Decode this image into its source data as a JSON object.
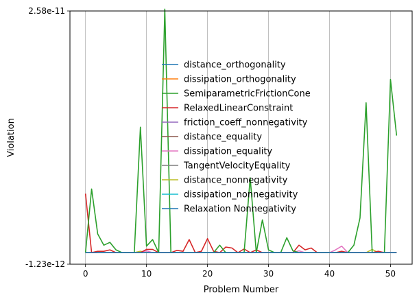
{
  "chart_data": {
    "type": "line",
    "title": "",
    "xlabel": "Problem Number",
    "ylabel": "Violation",
    "xlim": [
      -2.55,
      53.55
    ],
    "ylim": [
      -1.23e-12,
      2.58e-11
    ],
    "x_ticks": [
      0,
      10,
      20,
      30,
      40,
      50
    ],
    "x_tick_labels": [
      "0",
      "10",
      "20",
      "30",
      "40",
      "50"
    ],
    "y_ticks": [
      -1.23e-12,
      2.58e-11
    ],
    "y_tick_labels": [
      "-1.23e-12",
      "2.58e-11"
    ],
    "grid": "vertical",
    "legend_placement": "upper-center",
    "x": [
      0,
      1,
      2,
      3,
      4,
      5,
      6,
      7,
      8,
      9,
      10,
      11,
      12,
      13,
      14,
      15,
      16,
      17,
      18,
      19,
      20,
      21,
      22,
      23,
      24,
      25,
      26,
      27,
      28,
      29,
      30,
      31,
      32,
      33,
      34,
      35,
      36,
      37,
      38,
      39,
      40,
      41,
      42,
      43,
      44,
      45,
      46,
      47,
      48,
      49,
      50,
      51
    ],
    "series": [
      {
        "name": "distance_orthogonality",
        "color": "#1f77b4",
        "values": [
          0,
          0,
          0,
          0,
          0,
          0,
          0,
          0,
          0,
          0,
          0,
          0,
          0,
          0,
          0,
          0,
          0,
          0,
          0,
          0,
          0,
          0,
          0,
          0,
          0,
          0,
          0,
          0,
          0,
          0,
          0,
          0,
          0,
          0,
          0,
          0,
          0,
          0,
          0,
          0,
          0,
          0,
          0,
          0,
          0,
          0,
          0,
          0,
          0,
          0,
          0,
          0
        ]
      },
      {
        "name": "dissipation_orthogonality",
        "color": "#ff7f0e",
        "values": [
          0,
          0,
          0,
          0,
          0,
          0,
          0,
          0,
          0,
          0,
          0,
          0,
          0,
          0,
          0,
          0,
          0,
          0,
          0,
          0,
          0,
          0,
          0,
          0,
          0,
          0,
          0,
          0,
          0,
          0,
          0,
          0,
          0,
          0,
          0,
          0,
          0,
          0,
          0,
          0,
          0,
          0,
          0,
          0,
          0,
          0,
          0,
          0,
          0,
          0,
          0,
          0
        ]
      },
      {
        "name": "SemiparametricFrictionCone",
        "color": "#2ca02c",
        "values": [
          0,
          6.8e-12,
          2e-12,
          8e-13,
          1.1e-12,
          3e-13,
          0,
          0,
          0,
          1.34e-11,
          7e-13,
          1.4e-12,
          0,
          2.6e-11,
          0,
          0,
          0,
          0,
          0,
          0,
          0,
          0,
          8e-13,
          0,
          0,
          0,
          0,
          8e-12,
          0,
          3.5e-12,
          3e-13,
          0,
          0,
          1.6e-12,
          2e-13,
          0,
          0,
          0,
          0,
          0,
          0,
          0,
          0,
          0,
          8e-13,
          3.7e-12,
          1.6e-11,
          0,
          0,
          0,
          1.85e-11,
          1.25e-11
        ]
      },
      {
        "name": "RelaxedLinearConstraint",
        "color": "#d62728",
        "values": [
          6.3e-12,
          0,
          1.5e-13,
          1.5e-13,
          3e-13,
          0,
          0,
          0,
          0,
          0,
          3.5e-13,
          3.5e-13,
          0,
          0,
          0,
          2.5e-13,
          1.5e-13,
          1.4e-12,
          0,
          1.5e-13,
          1.5e-12,
          1.5e-13,
          0,
          6e-13,
          5e-13,
          0,
          4e-13,
          0,
          3e-13,
          0,
          0,
          0,
          0,
          0,
          0,
          8e-13,
          3e-13,
          5e-13,
          0,
          0,
          0,
          0,
          1.5e-13,
          0,
          0,
          0,
          0,
          0,
          1.5e-13,
          0,
          0,
          0
        ]
      },
      {
        "name": "friction_coeff_nonnegativity",
        "color": "#9467bd",
        "values": [
          0,
          0,
          0,
          0,
          0,
          0,
          0,
          0,
          0,
          0,
          0,
          0,
          0,
          0,
          0,
          0,
          0,
          0,
          0,
          0,
          0,
          0,
          0,
          0,
          0,
          0,
          0,
          0,
          0,
          0,
          0,
          0,
          0,
          0,
          0,
          0,
          0,
          0,
          0,
          0,
          0,
          0,
          0,
          0,
          0,
          0,
          0,
          0,
          0,
          0,
          0,
          0
        ]
      },
      {
        "name": "distance_equality",
        "color": "#8c564b",
        "values": [
          0,
          0,
          0,
          0,
          0,
          0,
          0,
          0,
          0,
          0,
          0,
          0,
          0,
          0,
          0,
          0,
          0,
          0,
          0,
          0,
          0,
          0,
          0,
          0,
          0,
          0,
          0,
          0,
          0,
          0,
          0,
          0,
          0,
          0,
          0,
          0,
          0,
          0,
          0,
          0,
          0,
          0,
          0,
          0,
          0,
          0,
          0,
          0,
          0,
          0,
          0,
          0
        ]
      },
      {
        "name": "dissipation_equality",
        "color": "#e377c2",
        "values": [
          0,
          0,
          0,
          0,
          0,
          0,
          0,
          0,
          0,
          0,
          2e-13,
          0,
          0,
          0,
          0,
          0,
          0,
          0,
          0,
          0,
          0,
          0,
          0,
          0,
          0,
          0,
          0,
          0,
          0,
          0,
          0,
          0,
          0,
          0,
          0,
          2e-13,
          0,
          0,
          0,
          0,
          0,
          3e-13,
          7e-13,
          0,
          0,
          0,
          0,
          0,
          0,
          0,
          0,
          0
        ]
      },
      {
        "name": "TangentVelocityEquality",
        "color": "#7f7f7f",
        "values": [
          0,
          0,
          0,
          0,
          0,
          0,
          0,
          0,
          0,
          0,
          0,
          0,
          0,
          0,
          0,
          0,
          0,
          0,
          0,
          0,
          0,
          0,
          0,
          0,
          0,
          0,
          0,
          0,
          0,
          0,
          0,
          0,
          0,
          0,
          0,
          0,
          0,
          0,
          0,
          0,
          0,
          0,
          0,
          0,
          0,
          0,
          0,
          0,
          0,
          0,
          0,
          0
        ]
      },
      {
        "name": "distance_nonnegativity",
        "color": "#bcbd22",
        "values": [
          0,
          0,
          0,
          0,
          0,
          0,
          0,
          0,
          0,
          1.5e-13,
          0,
          0,
          0,
          0,
          0,
          0,
          0,
          0,
          0,
          0,
          0,
          0,
          0,
          0,
          0,
          0,
          0,
          0,
          0,
          0,
          0,
          0,
          0,
          0,
          0,
          0,
          0,
          0,
          0,
          0,
          0,
          0,
          0,
          0,
          0,
          0,
          0,
          3.5e-13,
          0,
          0,
          0,
          0
        ]
      },
      {
        "name": "dissipation_nonnegativity",
        "color": "#17becf",
        "values": [
          0,
          0,
          0,
          0,
          0,
          0,
          0,
          0,
          0,
          0,
          0,
          0,
          0,
          0,
          0,
          0,
          0,
          0,
          0,
          0,
          0,
          0,
          0,
          0,
          0,
          0,
          0,
          0,
          0,
          0,
          0,
          0,
          0,
          0,
          0,
          0,
          0,
          0,
          0,
          0,
          0,
          0,
          0,
          0,
          0,
          0,
          0,
          0,
          0,
          0,
          0,
          0
        ]
      },
      {
        "name": "Relaxation Nonnegativity",
        "color": "#1f77b4",
        "values": [
          0,
          0,
          0,
          0,
          0,
          0,
          0,
          0,
          0,
          0,
          0,
          0,
          0,
          0,
          0,
          0,
          0,
          0,
          0,
          0,
          0,
          0,
          0,
          0,
          0,
          0,
          0,
          0,
          0,
          0,
          0,
          0,
          0,
          0,
          0,
          0,
          0,
          0,
          0,
          0,
          0,
          0,
          0,
          0,
          0,
          0,
          0,
          0,
          0,
          0,
          0,
          0
        ]
      }
    ]
  }
}
